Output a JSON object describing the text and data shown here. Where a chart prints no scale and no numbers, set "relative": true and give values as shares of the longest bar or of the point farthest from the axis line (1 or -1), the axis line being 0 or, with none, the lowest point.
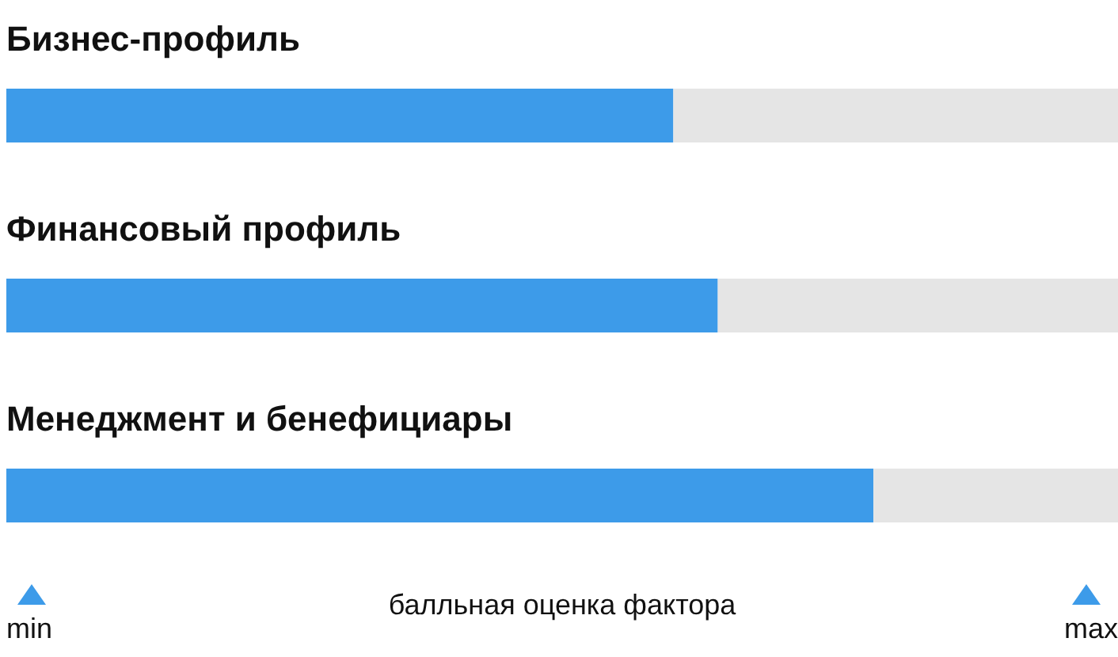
{
  "chart_data": {
    "type": "bar",
    "orientation": "horizontal",
    "stacked": true,
    "relative": true,
    "categories": [
      "Бизнес-профиль",
      "Финансовый профиль",
      "Менеджмент и бенефициары"
    ],
    "series": [
      {
        "color": "#3d9be9",
        "values": [
          0.6,
          0.64,
          0.78
        ]
      },
      {
        "color": "#e5e5e5",
        "values": [
          0.4,
          0.36,
          0.22
        ]
      }
    ],
    "xlabel": "балльная оценка фактора",
    "annotations": [
      "min",
      "max"
    ]
  }
}
